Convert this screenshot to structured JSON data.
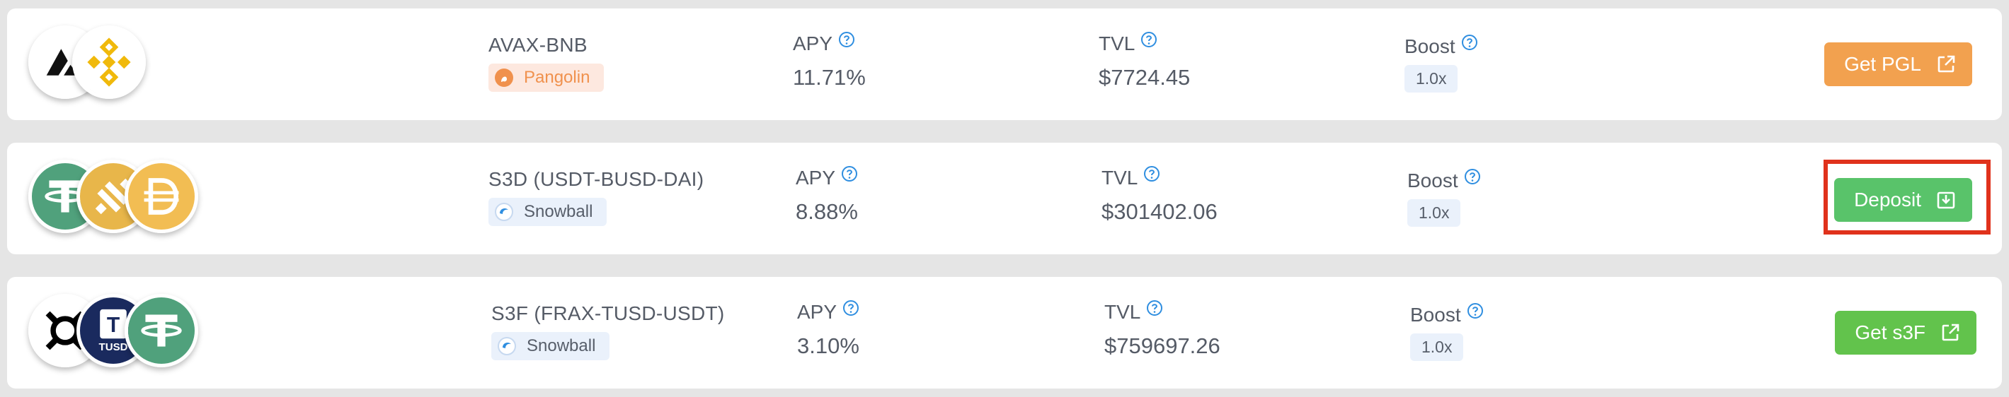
{
  "pools": [
    {
      "name": "AVAX-BNB",
      "source": "Pangolin",
      "apy_label": "APY",
      "apy": "11.71%",
      "tvl_label": "TVL",
      "tvl": "$7724.45",
      "boost_label": "Boost",
      "boost": "1.0x",
      "action": "Get PGL",
      "tokens": [
        "avax-icon",
        "bnb-icon"
      ]
    },
    {
      "name": "S3D (USDT-BUSD-DAI)",
      "source": "Snowball",
      "apy_label": "APY",
      "apy": "8.88%",
      "tvl_label": "TVL",
      "tvl": "$301402.06",
      "boost_label": "Boost",
      "boost": "1.0x",
      "action": "Deposit",
      "highlighted": true,
      "tokens": [
        "usdt-icon",
        "busd-icon",
        "dai-icon"
      ]
    },
    {
      "name": "S3F (FRAX-TUSD-USDT)",
      "source": "Snowball",
      "apy_label": "APY",
      "apy": "3.10%",
      "tvl_label": "TVL",
      "tvl": "$759697.26",
      "boost_label": "Boost",
      "boost": "1.0x",
      "action": "Get s3F",
      "tokens": [
        "frax-icon",
        "tusd-icon",
        "usdt-icon"
      ]
    }
  ],
  "token_glyphs": {
    "tusd": "TUSD",
    "tusd_letter": "T"
  },
  "colors": {
    "pangolin_orange": "#f0914d",
    "button_orange": "#f2a14f",
    "button_green": "#59c36a",
    "highlight_red": "#e0321c",
    "help_blue": "#2f8ee0"
  }
}
